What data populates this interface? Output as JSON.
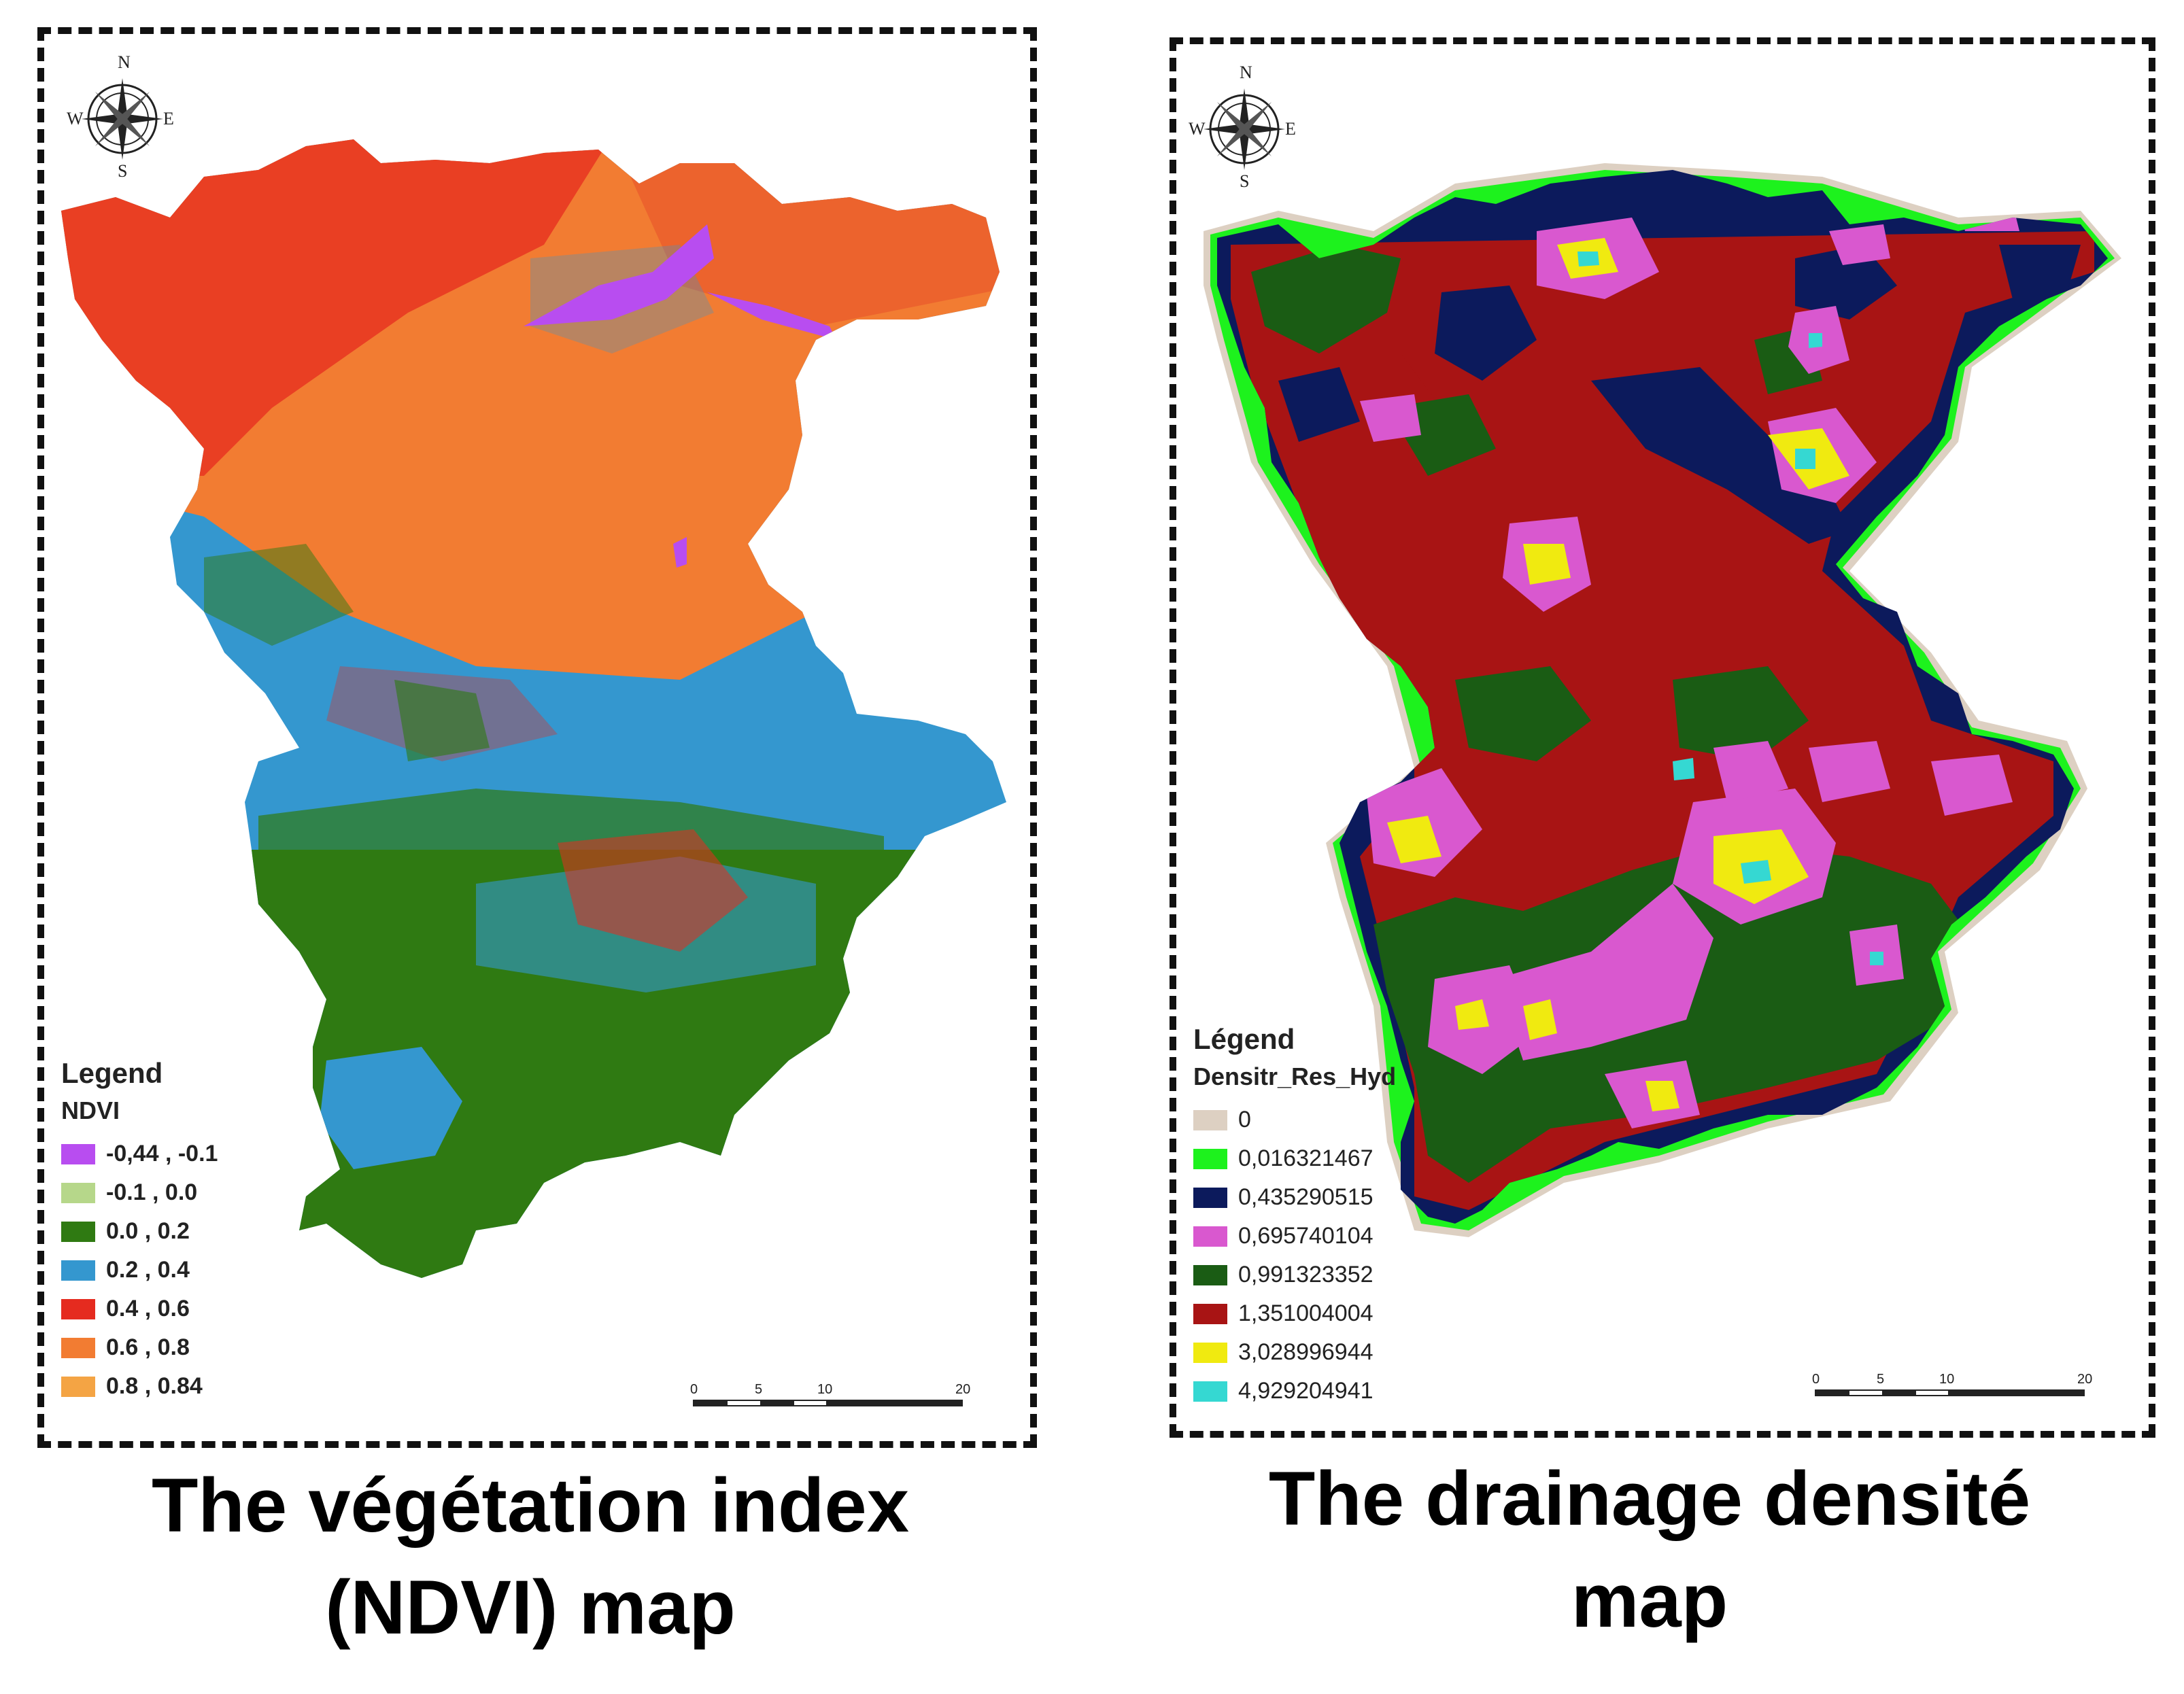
{
  "left_map": {
    "compass": {
      "n": "N",
      "s": "S",
      "e": "E",
      "w": "W"
    },
    "legend": {
      "title": "Legend",
      "subtitle": "NDVI",
      "items": [
        {
          "label": "-0,44 , -0.1",
          "color": "#b84df0"
        },
        {
          "label": "-0.1 , 0.0",
          "color": "#b6d78a"
        },
        {
          "label": "0.0 , 0.2",
          "color": "#2f7a12"
        },
        {
          "label": "0.2 , 0.4",
          "color": "#3497cf"
        },
        {
          "label": "0.4 , 0.6",
          "color": "#e52b1f"
        },
        {
          "label": "0.6 , 0.8",
          "color": "#f27c32"
        },
        {
          "label": "0.8 , 0.84",
          "color": "#f4a444"
        }
      ]
    },
    "scale": {
      "ticks": [
        "0",
        "5",
        "10",
        "20"
      ]
    },
    "caption_line1": "The végétation index",
    "caption_line2": "(NDVI) map"
  },
  "right_map": {
    "compass": {
      "n": "N",
      "s": "S",
      "e": "E",
      "w": "W"
    },
    "legend": {
      "title": "Légend",
      "subtitle": "Densitr_Res_Hyd",
      "items": [
        {
          "label": "0",
          "color": "#ddd0c2"
        },
        {
          "label": "0,016321467",
          "color": "#1df21d"
        },
        {
          "label": "0,435290515",
          "color": "#0c1a5c"
        },
        {
          "label": "0,695740104",
          "color": "#d958cf"
        },
        {
          "label": "0,991323352",
          "color": "#1a5c14"
        },
        {
          "label": "1,351004004",
          "color": "#a81414"
        },
        {
          "label": "3,028996944",
          "color": "#f0ea10"
        },
        {
          "label": "4,929204941",
          "color": "#35d8d2"
        }
      ]
    },
    "scale": {
      "ticks": [
        "0",
        "5",
        "10",
        "20"
      ]
    },
    "caption_line1": "The drainage densité",
    "caption_line2": "map"
  }
}
